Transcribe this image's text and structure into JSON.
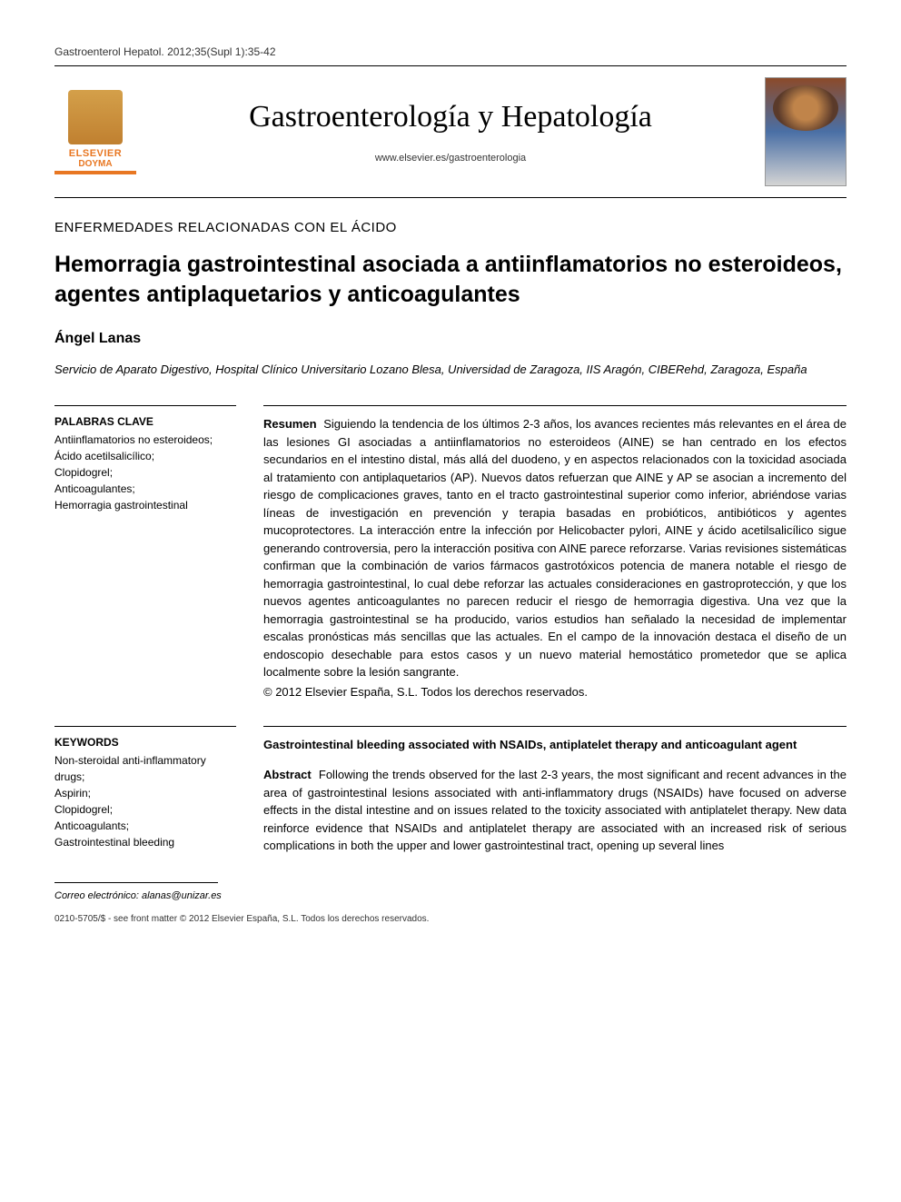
{
  "citation": "Gastroenterol Hepatol. 2012;35(Supl 1):35-42",
  "publisher": {
    "name": "ELSEVIER",
    "sub": "DOYMA"
  },
  "journal": {
    "title": "Gastroenterología y Hepatología",
    "url": "www.elsevier.es/gastroenterologia"
  },
  "section_label": "ENFERMEDADES RELACIONADAS CON EL ÁCIDO",
  "article_title": "Hemorragia gastrointestinal asociada a antiinflamatorios no esteroideos, agentes antiplaquetarios y anticoagulantes",
  "author": "Ángel Lanas",
  "affiliation": "Servicio de Aparato Digestivo, Hospital Clínico Universitario Lozano Blesa, Universidad de Zaragoza, IIS Aragón, CIBERehd, Zaragoza, España",
  "palabras_clave": {
    "heading": "PALABRAS CLAVE",
    "items": "Antiinflamatorios no esteroideos;\nÁcido acetilsalicílico;\nClopidogrel;\nAnticoagulantes;\nHemorragia gastrointestinal"
  },
  "resumen": {
    "label": "Resumen",
    "text": "Siguiendo la tendencia de los últimos 2-3 años, los avances recientes más relevantes en el área de las lesiones GI asociadas a antiinflamatorios no esteroideos (AINE) se han centrado en los efectos secundarios en el intestino distal, más allá del duodeno, y en aspectos relacionados con la toxicidad asociada al tratamiento con antiplaquetarios (AP). Nuevos datos refuerzan que AINE y AP se asocian a incremento del riesgo de complicaciones graves, tanto en el tracto gastrointestinal superior como inferior, abriéndose varias líneas de investigación en prevención y terapia basadas en probióticos, antibióticos y agentes mucoprotectores. La interacción entre la infección por Helicobacter pylori, AINE y ácido acetilsalicílico sigue generando controversia, pero la interacción positiva con AINE parece reforzarse. Varias revisiones sistemáticas confirman que la combinación de varios fármacos gastrotóxicos potencia de manera notable el riesgo de hemorragia gastrointestinal, lo cual debe reforzar las actuales consideraciones en gastroprotección, y que los nuevos agentes anticoagulantes no parecen reducir el riesgo de hemorragia digestiva. Una vez que la hemorragia gastrointestinal se ha producido, varios estudios han señalado la necesidad de implementar escalas pronósticas más sencillas que las actuales. En el campo de la innovación destaca el diseño de un endoscopio desechable para estos casos y un nuevo material hemostático prometedor que se aplica localmente sobre la lesión sangrante.",
    "copyright": "© 2012 Elsevier España, S.L. Todos los derechos reservados."
  },
  "keywords": {
    "heading": "KEYWORDS",
    "items": "Non-steroidal anti-inflammatory drugs;\nAspirin;\nClopidogrel;\nAnticoagulants;\nGastrointestinal bleeding"
  },
  "abstract_en": {
    "title": "Gastrointestinal bleeding associated with NSAIDs, antiplatelet therapy and anticoagulant agent",
    "label": "Abstract",
    "text": "Following the trends observed for the last 2-3 years, the most significant and recent advances in the area of gastrointestinal lesions associated with anti-inflammatory drugs (NSAIDs) have focused on adverse effects in the distal intestine and on issues related to the toxicity associated with antiplatelet therapy. New data reinforce evidence that NSAIDs and antiplatelet therapy are associated with an increased risk of serious complications in both the upper and lower gastrointestinal tract, opening up several lines"
  },
  "correo": {
    "label": "Correo electrónico:",
    "email": "alanas@unizar.es"
  },
  "front_matter": "0210-5705/$ - see front matter © 2012 Elsevier España, S.L. Todos los derechos reservados.",
  "colors": {
    "text": "#000000",
    "accent": "#e87722",
    "background": "#ffffff"
  },
  "typography": {
    "body_font": "Arial",
    "title_font": "Times New Roman",
    "journal_title_size": 34,
    "article_title_size": 25,
    "body_size": 13
  }
}
